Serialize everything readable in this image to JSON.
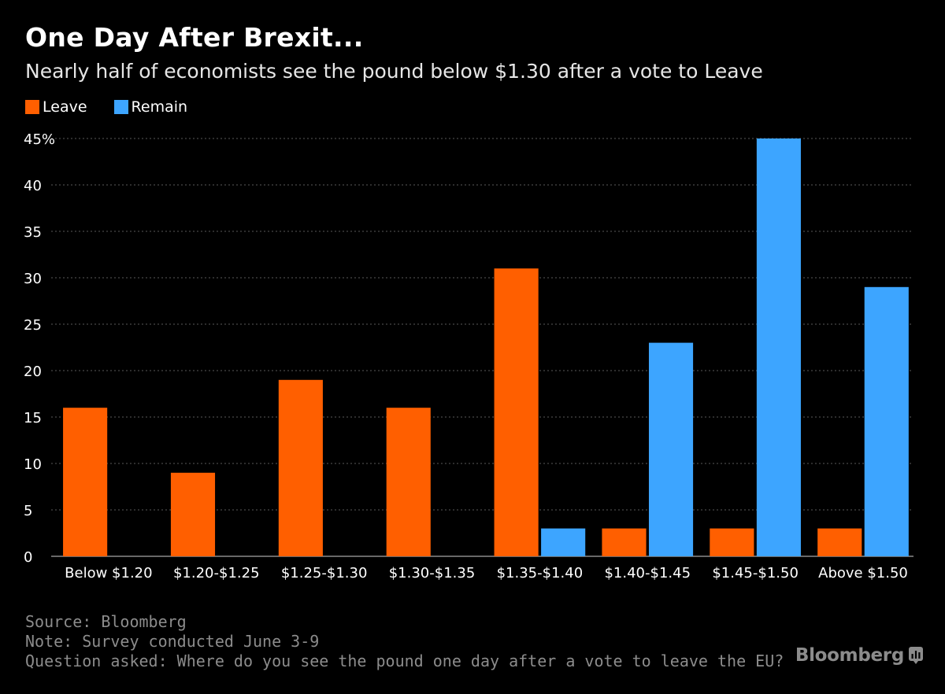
{
  "header": {
    "title": "One Day After Brexit...",
    "subtitle": "Nearly half of economists see the pound below $1.30 after a vote to Leave"
  },
  "colors": {
    "background": "#000000",
    "leave": "#ff5f00",
    "remain": "#3da5ff",
    "gridline": "#5a5a5a",
    "axis_text": "#ffffff",
    "footer_text": "#8c8c8c"
  },
  "chart_data": {
    "type": "bar",
    "categories": [
      "Below $1.20",
      "$1.20-$1.25",
      "$1.25-$1.30",
      "$1.30-$1.35",
      "$1.35-$1.40",
      "$1.40-$1.45",
      "$1.45-$1.50",
      "Above $1.50"
    ],
    "series": [
      {
        "name": "Leave",
        "values": [
          16,
          9,
          19,
          16,
          31,
          3,
          3,
          3
        ]
      },
      {
        "name": "Remain",
        "values": [
          0,
          0,
          0,
          0,
          3,
          23,
          45,
          29
        ]
      }
    ],
    "ylim": [
      0,
      45
    ],
    "yticks": [
      0,
      5,
      10,
      15,
      20,
      25,
      30,
      35,
      40,
      45
    ],
    "ytick_labels": [
      "0",
      "5",
      "10",
      "15",
      "20",
      "25",
      "30",
      "35",
      "40",
      "45%"
    ],
    "grid": true,
    "legend_position": "top-left",
    "xlabel": "",
    "ylabel": ""
  },
  "footer": {
    "source": "Source: Bloomberg",
    "note": "Note: Survey conducted June 3-9",
    "question": "Question asked: Where do you see the pound one day after a vote to leave the EU?"
  },
  "brand": {
    "name": "Bloomberg",
    "icon": "bloomberg-terminal-icon"
  }
}
